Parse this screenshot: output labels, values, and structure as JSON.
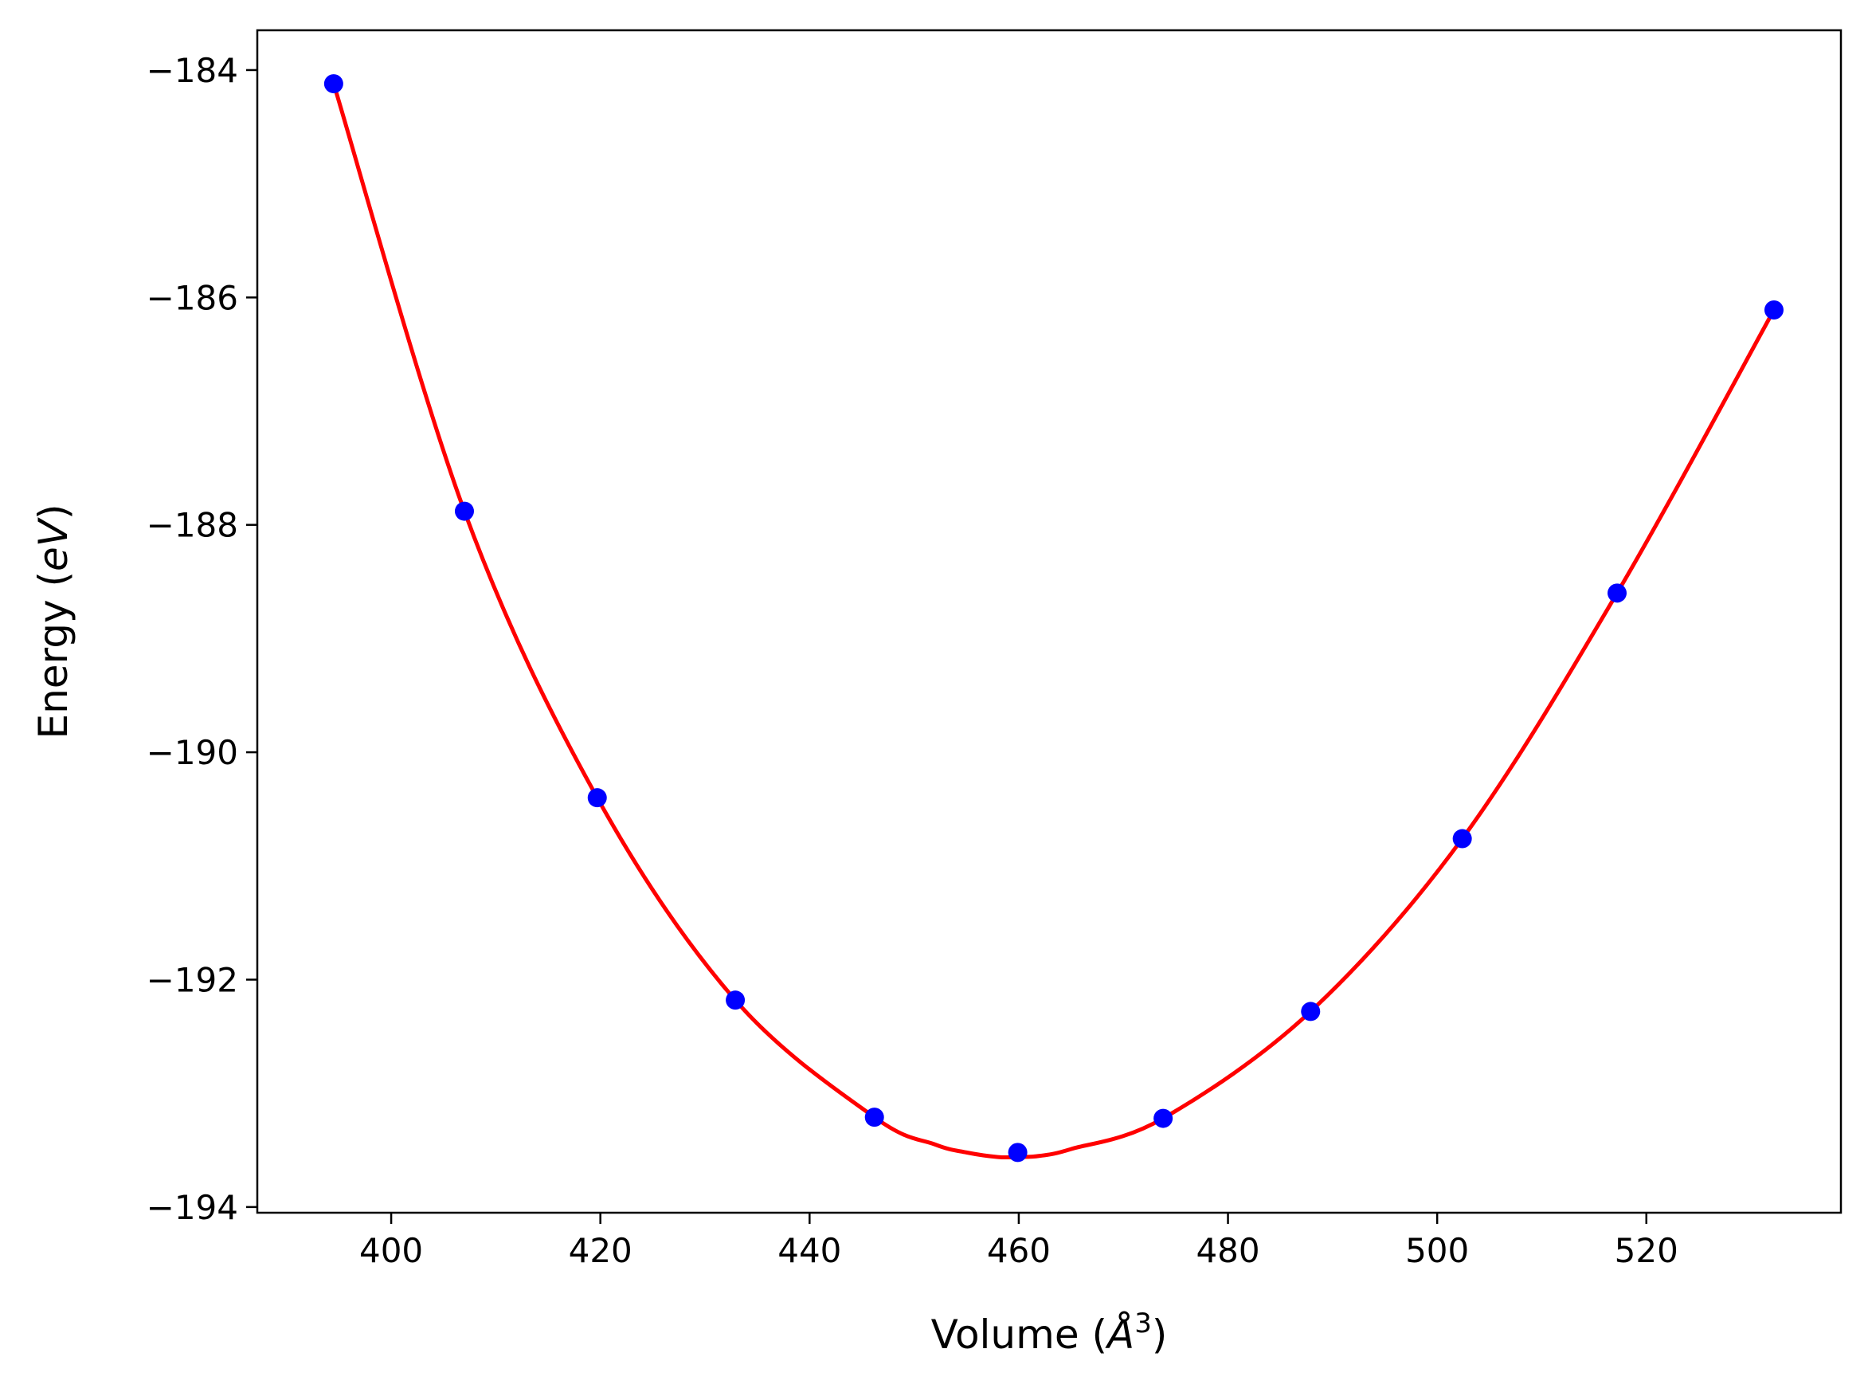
{
  "chart_data": {
    "type": "scatter",
    "xlabel": {
      "prefix": "Volume (",
      "unit": "Å",
      "superscript": "3",
      "suffix": ")"
    },
    "ylabel": {
      "prefix": "Energy (",
      "unit": "eV",
      "suffix": ")"
    },
    "xlim": [
      387.2,
      538.6
    ],
    "ylim": [
      -194.05,
      -183.65
    ],
    "x_ticks": [
      400,
      420,
      440,
      460,
      480,
      500,
      520
    ],
    "y_ticks": [
      -184,
      -186,
      -188,
      -190,
      -192,
      -194
    ],
    "x_tick_labels": [
      "400",
      "420",
      "440",
      "460",
      "480",
      "500",
      "520"
    ],
    "y_tick_labels": [
      "−184",
      "−186",
      "−188",
      "−190",
      "−192",
      "−194"
    ],
    "grid": false,
    "legend": "none",
    "series": [
      {
        "kind": "points",
        "color": "#0000ff",
        "x": [
          394.5,
          407.0,
          419.7,
          432.9,
          446.2,
          459.9,
          473.8,
          487.9,
          502.4,
          517.2,
          532.2
        ],
        "y": [
          -184.12,
          -187.88,
          -190.4,
          -192.18,
          -193.21,
          -193.52,
          -193.22,
          -192.28,
          -190.76,
          -188.6,
          -186.11
        ]
      },
      {
        "kind": "fit-curve",
        "color": "#ff0000",
        "x": [
          394.5,
          407.0,
          419.7,
          432.9,
          446.2,
          452.0,
          455.0,
          458.0,
          460.0,
          462.0,
          465.0,
          473.8,
          487.9,
          502.4,
          517.2,
          532.2
        ],
        "y": [
          -184.12,
          -187.88,
          -190.4,
          -192.18,
          -193.21,
          -193.45,
          -193.52,
          -193.56,
          -193.56,
          -193.55,
          -193.49,
          -193.22,
          -192.28,
          -190.76,
          -188.6,
          -186.11
        ]
      }
    ]
  }
}
